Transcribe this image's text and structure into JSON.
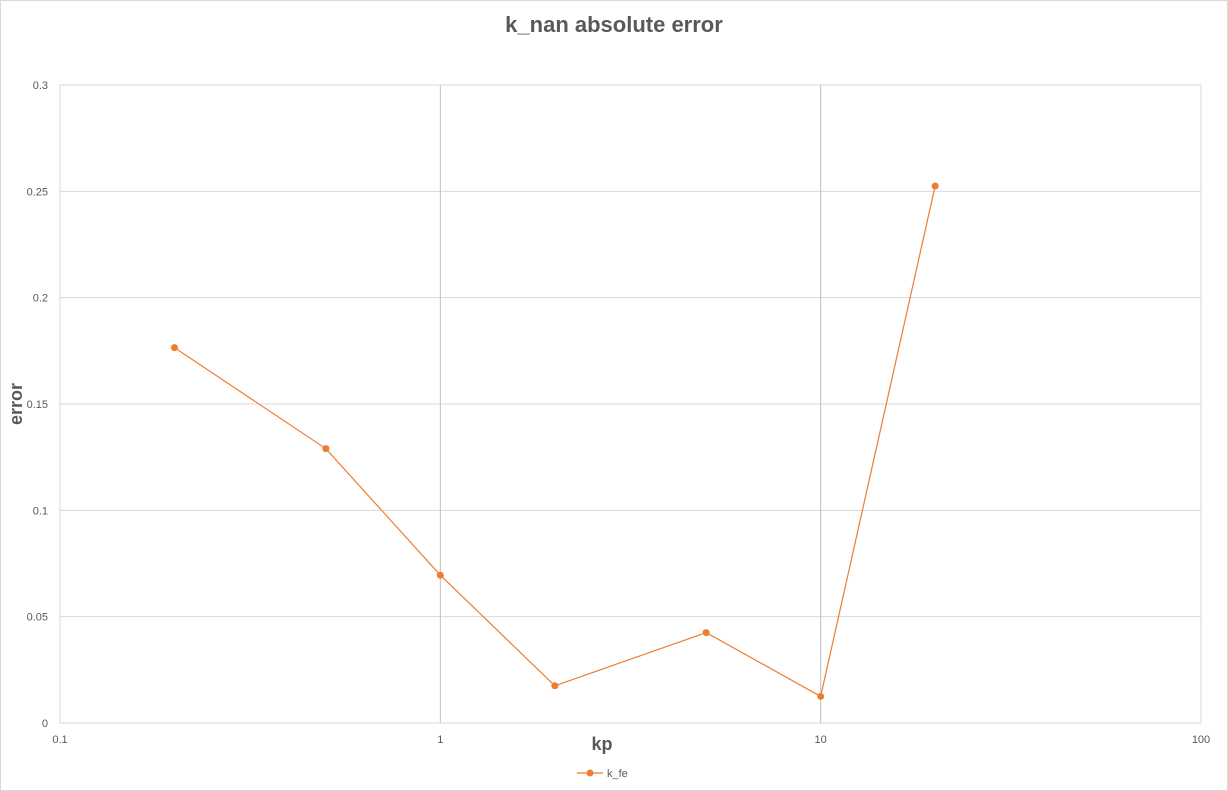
{
  "chart_data": {
    "type": "scatter",
    "title": "k_nan absolute error",
    "xlabel": "kp",
    "ylabel": "error",
    "x_scale": "log",
    "xlim": [
      0.1,
      100
    ],
    "ylim": [
      0,
      0.3
    ],
    "x_ticks": [
      "0.1",
      "1",
      "10",
      "100"
    ],
    "y_ticks": [
      "0",
      "0.05",
      "0.1",
      "0.15",
      "0.2",
      "0.25",
      "0.3"
    ],
    "grid": true,
    "legend_position": "bottom",
    "series": [
      {
        "name": "k_fe",
        "color": "#ED7D31",
        "x": [
          0.2,
          0.5,
          1,
          2,
          5,
          10,
          20
        ],
        "y": [
          0.1765,
          0.129,
          0.0695,
          0.0175,
          0.0425,
          0.0125,
          0.2525
        ]
      }
    ]
  }
}
